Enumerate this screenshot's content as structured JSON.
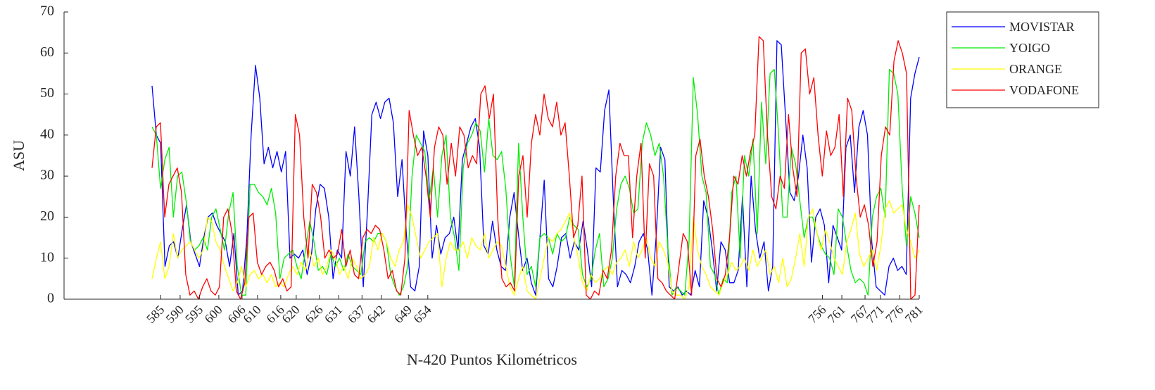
{
  "chart_data": {
    "type": "line",
    "xlabel": "N-420 Puntos Kilométricos",
    "ylabel": "ASU",
    "ylim": [
      0,
      70
    ],
    "yticks": [
      0,
      10,
      20,
      30,
      40,
      50,
      60,
      70
    ],
    "xlim": [
      560,
      781
    ],
    "xticks": [
      585,
      590,
      595,
      600,
      606,
      610,
      616,
      620,
      626,
      631,
      637,
      642,
      649,
      654,
      756,
      761,
      767,
      771,
      776,
      781
    ],
    "grid": false,
    "legend_position": "top-right outside",
    "series": [
      {
        "name": "MOVISTAR",
        "color": "#0000ff",
        "values": [
          52,
          40,
          38,
          8,
          13,
          14,
          10,
          17,
          23,
          14,
          11,
          8,
          15,
          20,
          21,
          18,
          16,
          14,
          8,
          16,
          1,
          2,
          15,
          40,
          57,
          49,
          33,
          37,
          32,
          36,
          31,
          36,
          10,
          11,
          10,
          12,
          6,
          11,
          22,
          28,
          27,
          20,
          5,
          12,
          10,
          36,
          30,
          42,
          25,
          3,
          22,
          45,
          48,
          44,
          48,
          49,
          43,
          25,
          34,
          16,
          3,
          2,
          8,
          41,
          35,
          10,
          18,
          11,
          15,
          16,
          20,
          12,
          34,
          38,
          42,
          44,
          37,
          13,
          11,
          19,
          12,
          8,
          7,
          20,
          26,
          16,
          7,
          10,
          4,
          1,
          15,
          29,
          5,
          3,
          8,
          15,
          16,
          10,
          14,
          12,
          19,
          12,
          3,
          32,
          31,
          46,
          51,
          25,
          3,
          7,
          6,
          4,
          8,
          14,
          16,
          12,
          1,
          16,
          37,
          34,
          3,
          2,
          3,
          1,
          2,
          1,
          7,
          3,
          24,
          20,
          12,
          2,
          14,
          12,
          4,
          4,
          7,
          25,
          3,
          30,
          17,
          10,
          14,
          2,
          8,
          63,
          62,
          44,
          26,
          24,
          30,
          40,
          32,
          9,
          20,
          22,
          18,
          4,
          18,
          15,
          12,
          37,
          40,
          26,
          42,
          46,
          40,
          14,
          3,
          2,
          1,
          8,
          10,
          7,
          8,
          6,
          49,
          55,
          59
        ]
      },
      {
        "name": "YOIGO",
        "color": "#00ee00",
        "values": [
          42,
          40,
          27,
          34,
          37,
          20,
          30,
          31,
          24,
          14,
          12,
          13,
          15,
          12,
          20,
          22,
          17,
          12,
          21,
          26,
          8,
          1,
          1,
          28,
          28,
          26,
          25,
          23,
          27,
          21,
          5,
          10,
          11,
          12,
          8,
          5,
          12,
          19,
          14,
          7,
          8,
          6,
          11,
          8,
          10,
          7,
          11,
          8,
          7,
          6,
          14,
          15,
          14,
          16,
          16,
          14,
          6,
          3,
          1,
          3,
          8,
          30,
          40,
          38,
          36,
          24,
          32,
          20,
          35,
          40,
          20,
          15,
          7,
          32,
          38,
          40,
          43,
          41,
          31,
          44,
          35,
          34,
          36,
          27,
          11,
          3,
          38,
          20,
          6,
          8,
          3,
          15,
          16,
          15,
          11,
          16,
          14,
          15,
          20,
          18,
          17,
          6,
          3,
          5,
          12,
          16,
          3,
          5,
          10,
          22,
          28,
          30,
          27,
          21,
          22,
          38,
          43,
          40,
          35,
          38,
          30,
          13,
          1,
          3,
          2,
          1,
          14,
          54,
          45,
          30,
          26,
          8,
          6,
          1,
          5,
          4,
          26,
          30,
          10,
          35,
          30,
          39,
          16,
          48,
          33,
          55,
          56,
          40,
          20,
          20,
          37,
          33,
          24,
          15,
          20,
          20,
          16,
          13,
          11,
          10,
          6,
          22,
          20,
          13,
          7,
          4,
          5,
          4,
          1,
          20,
          25,
          27,
          20,
          56,
          55,
          50,
          27,
          13,
          25,
          21,
          15
        ]
      },
      {
        "name": "ORANGE",
        "color": "#ffff00",
        "values": [
          5,
          10,
          14,
          5,
          8,
          16,
          10,
          12,
          13,
          14,
          12,
          10,
          12,
          20,
          19,
          14,
          12,
          8,
          5,
          2,
          4,
          8,
          3,
          6,
          7,
          5,
          6,
          4,
          6,
          3,
          4,
          3,
          6,
          8,
          6,
          9,
          7,
          12,
          8,
          10,
          6,
          8,
          12,
          10,
          6,
          8,
          5,
          10,
          8,
          5,
          6,
          8,
          15,
          12,
          16,
          14,
          10,
          8,
          12,
          14,
          23,
          20,
          15,
          10,
          12,
          14,
          15,
          16,
          3,
          10,
          14,
          12,
          12,
          14,
          10,
          15,
          13,
          12,
          16,
          10,
          12,
          14,
          13,
          8,
          3,
          1,
          5,
          8,
          2,
          1,
          0,
          5,
          10,
          15,
          14,
          16,
          17,
          19,
          21,
          15,
          10,
          4,
          2,
          6,
          4,
          5,
          7,
          8,
          6,
          9,
          10,
          12,
          8,
          14,
          10,
          12,
          15,
          10,
          8,
          14,
          12,
          9,
          2,
          1,
          1,
          0,
          3,
          20,
          12,
          8,
          6,
          3,
          2,
          1,
          4,
          6,
          9,
          7,
          8,
          10,
          7,
          12,
          8,
          10,
          12,
          6,
          8,
          4,
          10,
          3,
          5,
          10,
          16,
          8,
          20,
          22,
          16,
          12,
          17,
          14,
          10,
          8,
          6,
          14,
          17,
          21,
          11,
          8,
          10,
          12,
          7,
          13,
          22,
          24,
          21,
          22,
          23,
          17,
          14,
          10,
          12
        ]
      },
      {
        "name": "VODAFONE",
        "color": "#ff0000",
        "values": [
          32,
          42,
          43,
          20,
          28,
          30,
          32,
          26,
          6,
          1,
          2,
          0,
          3,
          5,
          2,
          1,
          3,
          20,
          22,
          16,
          2,
          0,
          4,
          20,
          21,
          9,
          6,
          8,
          9,
          7,
          3,
          5,
          2,
          3,
          45,
          40,
          20,
          10,
          28,
          26,
          20,
          10,
          12,
          10,
          11,
          17,
          8,
          12,
          6,
          5,
          15,
          17,
          16,
          18,
          17,
          12,
          5,
          7,
          2,
          1,
          10,
          46,
          40,
          35,
          37,
          30,
          20,
          37,
          42,
          40,
          28,
          38,
          30,
          42,
          40,
          32,
          35,
          33,
          50,
          52,
          44,
          50,
          20,
          5,
          3,
          4,
          2,
          30,
          35,
          20,
          38,
          45,
          40,
          50,
          44,
          42,
          48,
          40,
          43,
          30,
          15,
          18,
          30,
          1,
          0,
          2,
          1,
          7,
          5,
          12,
          30,
          38,
          35,
          35,
          15,
          30,
          38,
          10,
          33,
          30,
          5,
          4,
          2,
          1,
          0,
          8,
          16,
          14,
          1,
          35,
          39,
          30,
          25,
          17,
          5,
          3,
          6,
          15,
          30,
          28,
          35,
          30,
          36,
          40,
          64,
          63,
          40,
          25,
          22,
          30,
          27,
          45,
          32,
          25,
          60,
          61,
          50,
          54,
          40,
          30,
          41,
          35,
          37,
          45,
          25,
          49,
          46,
          30,
          20,
          23,
          18,
          8,
          14,
          35,
          42,
          40,
          58,
          63,
          60,
          55,
          0,
          1,
          23
        ]
      }
    ]
  }
}
